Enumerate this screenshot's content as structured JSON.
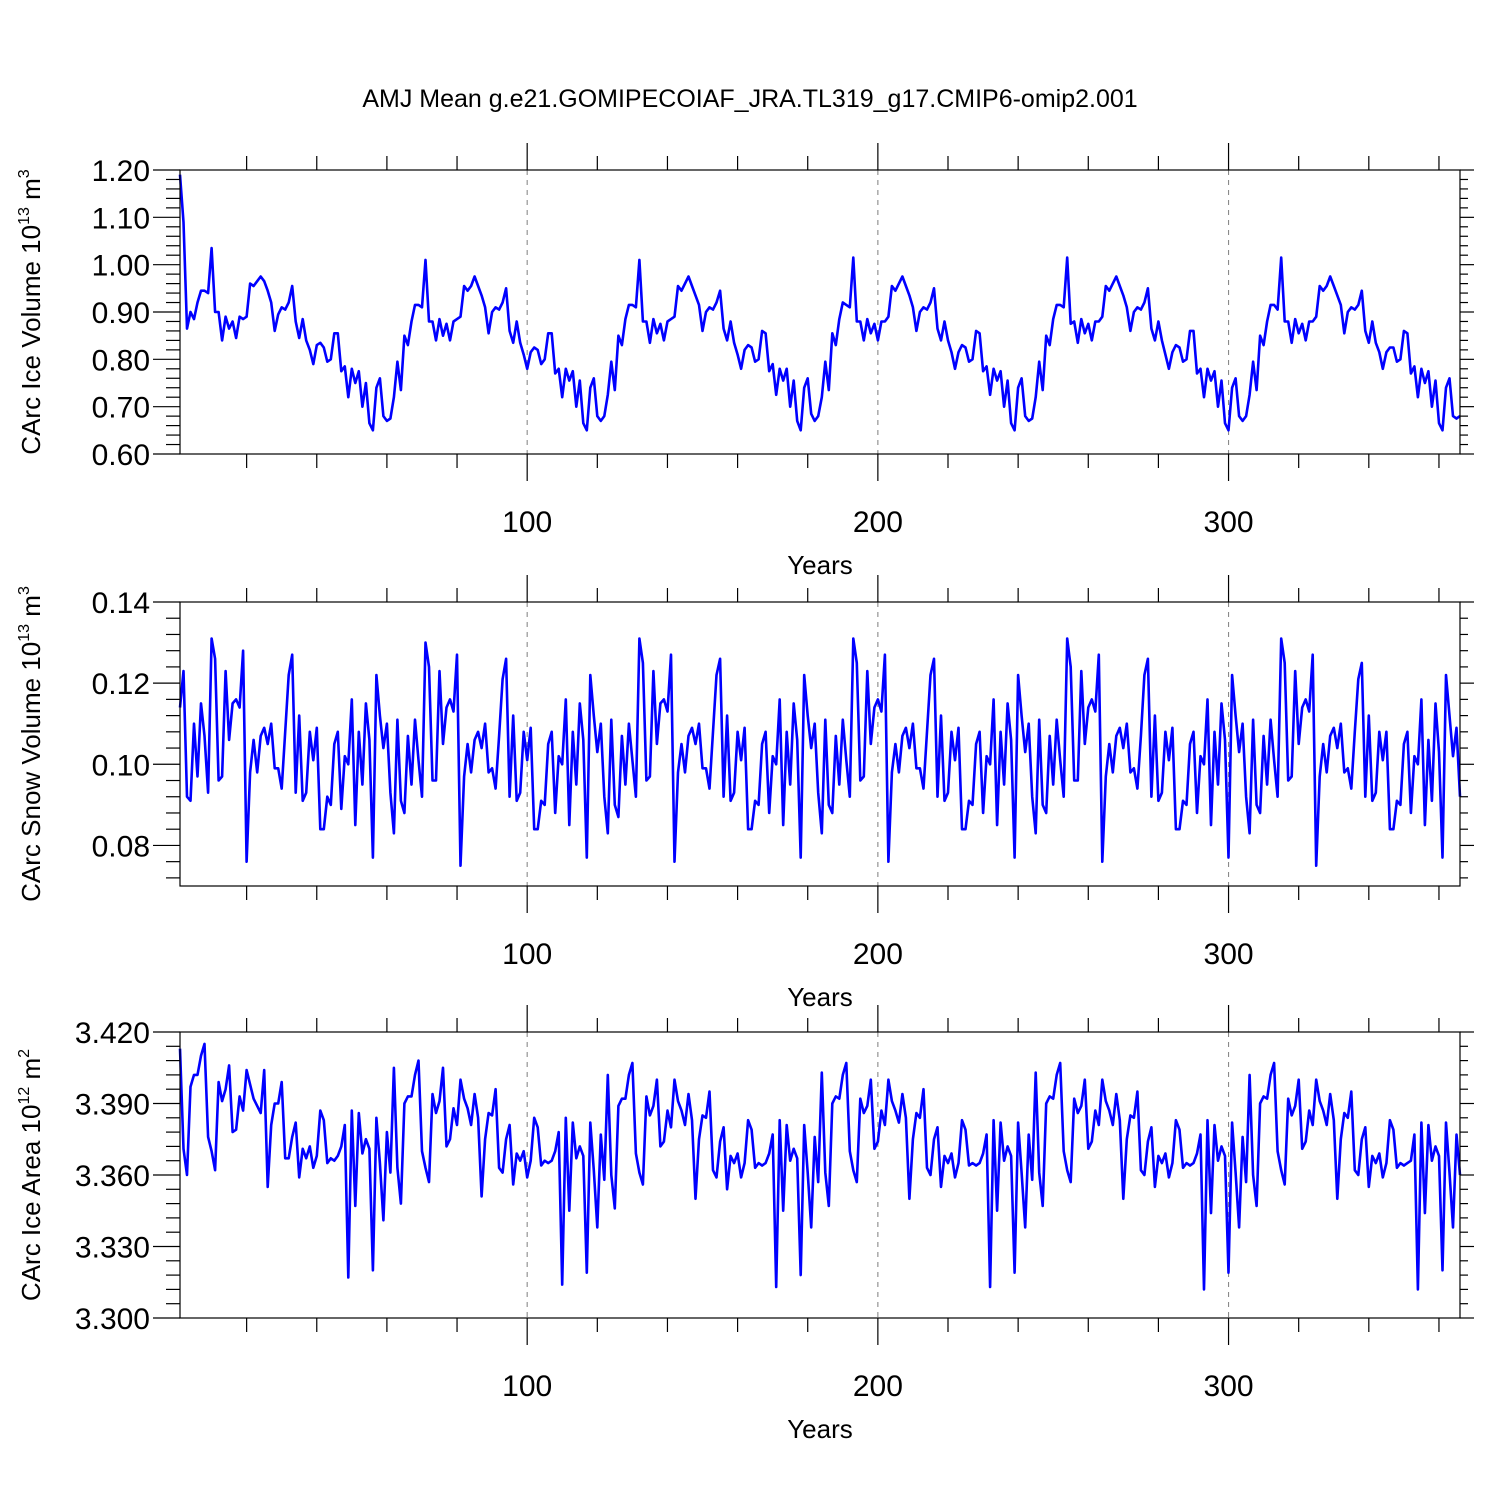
{
  "title": "AMJ Mean g.e21.GOMIPECOIAF_JRA.TL319_g17.CMIP6-omip2.001",
  "chart_data": [
    {
      "type": "line",
      "name": "ice-volume",
      "ylabel": "CArc Ice Volume 10",
      "ylabel_sup": "13",
      "ylabel_unit": "m",
      "ylabel_unit_sup": "3",
      "xlabel": "Years",
      "xlim": [
        1,
        366
      ],
      "ylim": [
        0.6,
        1.2
      ],
      "grid_x": [
        100,
        200,
        300
      ],
      "x_ticks": [
        100,
        200,
        300
      ],
      "x_tick_labels": [
        "100",
        "200",
        "300"
      ],
      "y_ticks": [
        0.6,
        0.7,
        0.8,
        0.9,
        1.0,
        1.1,
        1.2
      ],
      "y_tick_labels": [
        "0.60",
        "0.70",
        "0.80",
        "0.90",
        "1.00",
        "1.10",
        "1.20"
      ],
      "values": [
        1.19,
        1.09,
        0.865,
        0.9,
        0.885,
        0.92,
        0.945,
        0.945,
        0.94,
        1.035,
        0.9,
        0.9,
        0.84,
        0.89,
        0.865,
        0.88,
        0.845,
        0.89,
        0.885,
        0.89,
        0.96,
        0.955,
        0.965,
        0.975,
        0.965,
        0.945,
        0.92,
        0.86,
        0.895,
        0.91,
        0.905,
        0.92,
        0.955,
        0.88,
        0.845,
        0.885,
        0.84,
        0.82,
        0.79,
        0.83,
        0.835,
        0.825,
        0.795,
        0.8,
        0.855,
        0.855,
        0.775,
        0.785,
        0.72,
        0.78,
        0.75,
        0.775,
        0.7,
        0.75,
        0.665,
        0.65,
        0.74,
        0.76,
        0.68,
        0.67,
        0.675,
        0.72,
        0.795,
        0.735,
        0.85,
        0.83,
        0.88,
        0.915,
        0.915,
        0.91,
        1.01,
        0.88,
        0.88,
        0.84,
        0.885,
        0.85,
        0.875,
        0.84,
        0.88,
        0.885,
        0.89,
        0.955,
        0.945,
        0.955,
        0.975,
        0.955,
        0.935,
        0.91,
        0.855,
        0.9,
        0.91,
        0.905,
        0.92,
        0.95,
        0.86,
        0.835,
        0.88,
        0.835,
        0.81,
        0.78,
        0.815,
        0.825,
        0.82,
        0.79,
        0.8,
        0.855,
        0.855,
        0.77,
        0.78,
        0.72,
        0.78,
        0.755,
        0.775,
        0.7,
        0.755,
        0.665,
        0.65,
        0.74,
        0.76,
        0.68,
        0.67,
        0.68,
        0.725,
        0.795,
        0.735,
        0.85,
        0.83,
        0.885,
        0.915,
        0.915,
        0.91,
        1.01,
        0.88,
        0.88,
        0.835,
        0.885,
        0.855,
        0.875,
        0.84,
        0.88,
        0.885,
        0.89,
        0.955,
        0.945,
        0.96,
        0.975,
        0.955,
        0.935,
        0.915,
        0.86,
        0.9,
        0.91,
        0.905,
        0.92,
        0.945,
        0.865,
        0.84,
        0.88,
        0.835,
        0.81,
        0.78,
        0.82,
        0.83,
        0.825,
        0.795,
        0.8,
        0.86,
        0.855,
        0.775,
        0.79,
        0.725,
        0.78,
        0.755,
        0.78,
        0.7,
        0.755,
        0.67,
        0.65,
        0.74,
        0.76,
        0.685,
        0.67,
        0.68,
        0.72,
        0.795,
        0.735,
        0.855,
        0.83,
        0.885,
        0.92,
        0.915,
        0.91,
        1.015,
        0.88,
        0.88,
        0.84,
        0.885,
        0.855,
        0.875,
        0.84,
        0.88,
        0.88,
        0.89,
        0.955,
        0.945,
        0.96,
        0.975,
        0.955,
        0.935,
        0.91,
        0.86,
        0.9,
        0.91,
        0.905,
        0.92,
        0.95,
        0.865,
        0.84,
        0.88,
        0.84,
        0.815,
        0.78,
        0.815,
        0.83,
        0.825,
        0.795,
        0.8,
        0.86,
        0.855,
        0.775,
        0.785,
        0.725,
        0.78,
        0.755,
        0.775,
        0.7,
        0.755,
        0.665,
        0.65,
        0.74,
        0.76,
        0.68,
        0.67,
        0.675,
        0.72,
        0.795,
        0.735,
        0.85,
        0.83,
        0.885,
        0.915,
        0.915,
        0.91,
        1.015,
        0.875,
        0.88,
        0.835,
        0.885,
        0.855,
        0.875,
        0.84,
        0.88,
        0.88,
        0.89,
        0.955,
        0.945,
        0.96,
        0.975,
        0.955,
        0.935,
        0.91,
        0.86,
        0.9,
        0.91,
        0.905,
        0.92,
        0.95,
        0.865,
        0.84,
        0.88,
        0.84,
        0.81,
        0.78,
        0.815,
        0.83,
        0.825,
        0.795,
        0.8,
        0.86,
        0.86,
        0.77,
        0.78,
        0.72,
        0.78,
        0.755,
        0.775,
        0.7,
        0.755,
        0.665,
        0.65,
        0.74,
        0.76,
        0.68,
        0.67,
        0.68,
        0.725,
        0.795,
        0.735,
        0.85,
        0.83,
        0.88,
        0.915,
        0.915,
        0.905,
        1.015,
        0.88,
        0.88,
        0.835,
        0.885,
        0.855,
        0.875,
        0.84,
        0.88,
        0.88,
        0.89,
        0.955,
        0.945,
        0.955,
        0.975,
        0.955,
        0.935,
        0.915,
        0.855,
        0.9,
        0.91,
        0.905,
        0.915,
        0.945,
        0.86,
        0.835,
        0.88,
        0.835,
        0.815,
        0.78,
        0.815,
        0.825,
        0.825,
        0.795,
        0.8,
        0.86,
        0.855,
        0.77,
        0.785,
        0.72,
        0.78,
        0.75,
        0.775,
        0.7,
        0.755,
        0.665,
        0.65,
        0.74,
        0.76,
        0.68,
        0.675,
        0.68
      ]
    },
    {
      "type": "line",
      "name": "snow-volume",
      "ylabel": "CArc Snow Volume 10",
      "ylabel_sup": "13",
      "ylabel_unit": "m",
      "ylabel_unit_sup": "3",
      "xlabel": "Years",
      "xlim": [
        1,
        366
      ],
      "ylim": [
        0.07,
        0.14
      ],
      "grid_x": [
        100,
        200,
        300
      ],
      "x_ticks": [
        100,
        200,
        300
      ],
      "x_tick_labels": [
        "100",
        "200",
        "300"
      ],
      "y_ticks": [
        0.08,
        0.1,
        0.12,
        0.14
      ],
      "y_tick_labels": [
        "0.08",
        "0.10",
        "0.12",
        "0.14"
      ],
      "values": [
        0.114,
        0.123,
        0.092,
        0.091,
        0.11,
        0.097,
        0.115,
        0.107,
        0.093,
        0.131,
        0.126,
        0.096,
        0.097,
        0.123,
        0.106,
        0.115,
        0.116,
        0.114,
        0.128,
        0.076,
        0.098,
        0.106,
        0.098,
        0.107,
        0.109,
        0.105,
        0.11,
        0.099,
        0.099,
        0.094,
        0.108,
        0.122,
        0.127,
        0.093,
        0.112,
        0.091,
        0.093,
        0.108,
        0.101,
        0.109,
        0.084,
        0.084,
        0.092,
        0.09,
        0.105,
        0.108,
        0.089,
        0.102,
        0.1,
        0.116,
        0.085,
        0.108,
        0.095,
        0.115,
        0.106,
        0.077,
        0.122,
        0.112,
        0.104,
        0.11,
        0.093,
        0.083,
        0.111,
        0.091,
        0.088,
        0.107,
        0.095,
        0.111,
        0.101,
        0.092,
        0.13,
        0.124,
        0.096,
        0.096,
        0.123,
        0.105,
        0.114,
        0.116,
        0.113,
        0.127,
        0.075,
        0.097,
        0.105,
        0.098,
        0.106,
        0.108,
        0.104,
        0.11,
        0.098,
        0.099,
        0.094,
        0.107,
        0.121,
        0.126,
        0.092,
        0.112,
        0.091,
        0.093,
        0.108,
        0.101,
        0.109,
        0.084,
        0.084,
        0.091,
        0.09,
        0.105,
        0.108,
        0.088,
        0.102,
        0.1,
        0.116,
        0.085,
        0.108,
        0.095,
        0.115,
        0.106,
        0.077,
        0.122,
        0.112,
        0.103,
        0.11,
        0.092,
        0.083,
        0.111,
        0.09,
        0.087,
        0.107,
        0.095,
        0.11,
        0.101,
        0.092,
        0.131,
        0.125,
        0.096,
        0.097,
        0.123,
        0.105,
        0.115,
        0.116,
        0.113,
        0.127,
        0.076,
        0.098,
        0.105,
        0.098,
        0.107,
        0.109,
        0.105,
        0.11,
        0.099,
        0.099,
        0.094,
        0.108,
        0.122,
        0.126,
        0.092,
        0.112,
        0.091,
        0.093,
        0.108,
        0.101,
        0.109,
        0.084,
        0.084,
        0.091,
        0.09,
        0.105,
        0.108,
        0.088,
        0.102,
        0.1,
        0.116,
        0.085,
        0.108,
        0.095,
        0.115,
        0.106,
        0.077,
        0.122,
        0.112,
        0.104,
        0.11,
        0.093,
        0.083,
        0.111,
        0.09,
        0.088,
        0.107,
        0.095,
        0.111,
        0.101,
        0.092,
        0.131,
        0.125,
        0.096,
        0.097,
        0.123,
        0.105,
        0.114,
        0.116,
        0.113,
        0.127,
        0.076,
        0.098,
        0.105,
        0.098,
        0.107,
        0.109,
        0.104,
        0.11,
        0.099,
        0.099,
        0.094,
        0.108,
        0.122,
        0.126,
        0.092,
        0.112,
        0.091,
        0.093,
        0.108,
        0.101,
        0.109,
        0.084,
        0.084,
        0.091,
        0.09,
        0.105,
        0.108,
        0.088,
        0.102,
        0.1,
        0.116,
        0.085,
        0.108,
        0.095,
        0.115,
        0.106,
        0.077,
        0.122,
        0.112,
        0.103,
        0.11,
        0.092,
        0.083,
        0.111,
        0.09,
        0.088,
        0.107,
        0.095,
        0.111,
        0.101,
        0.092,
        0.131,
        0.124,
        0.096,
        0.096,
        0.123,
        0.105,
        0.114,
        0.116,
        0.113,
        0.127,
        0.076,
        0.097,
        0.105,
        0.098,
        0.107,
        0.109,
        0.104,
        0.11,
        0.098,
        0.099,
        0.094,
        0.107,
        0.122,
        0.126,
        0.092,
        0.112,
        0.091,
        0.093,
        0.108,
        0.101,
        0.109,
        0.084,
        0.084,
        0.091,
        0.09,
        0.105,
        0.108,
        0.088,
        0.102,
        0.1,
        0.116,
        0.085,
        0.108,
        0.095,
        0.115,
        0.106,
        0.077,
        0.122,
        0.112,
        0.103,
        0.11,
        0.092,
        0.083,
        0.111,
        0.09,
        0.088,
        0.107,
        0.095,
        0.111,
        0.101,
        0.092,
        0.131,
        0.125,
        0.096,
        0.097,
        0.123,
        0.105,
        0.114,
        0.116,
        0.113,
        0.127,
        0.075,
        0.097,
        0.105,
        0.098,
        0.107,
        0.109,
        0.104,
        0.11,
        0.098,
        0.099,
        0.094,
        0.108,
        0.121,
        0.125,
        0.092,
        0.112,
        0.091,
        0.093,
        0.108,
        0.101,
        0.108,
        0.084,
        0.084,
        0.091,
        0.09,
        0.105,
        0.108,
        0.088,
        0.102,
        0.1,
        0.116,
        0.085,
        0.106,
        0.091,
        0.115,
        0.103,
        0.077,
        0.122,
        0.112,
        0.102,
        0.109,
        0.092
      ]
    },
    {
      "type": "line",
      "name": "ice-area",
      "ylabel": "CArc Ice Area 10",
      "ylabel_sup": "12",
      "ylabel_unit": "m",
      "ylabel_unit_sup": "2",
      "xlabel": "Years",
      "xlim": [
        1,
        366
      ],
      "ylim": [
        3.3,
        3.42
      ],
      "grid_x": [
        100,
        200,
        300
      ],
      "x_ticks": [
        100,
        200,
        300
      ],
      "x_tick_labels": [
        "100",
        "200",
        "300"
      ],
      "y_ticks": [
        3.3,
        3.33,
        3.36,
        3.39,
        3.42
      ],
      "y_tick_labels": [
        "3.300",
        "3.330",
        "3.360",
        "3.390",
        "3.420"
      ],
      "values": [
        3.413,
        3.371,
        3.36,
        3.397,
        3.402,
        3.402,
        3.41,
        3.415,
        3.376,
        3.37,
        3.362,
        3.399,
        3.391,
        3.396,
        3.406,
        3.378,
        3.379,
        3.393,
        3.387,
        3.404,
        3.398,
        3.392,
        3.389,
        3.386,
        3.404,
        3.355,
        3.381,
        3.39,
        3.39,
        3.399,
        3.367,
        3.367,
        3.376,
        3.382,
        3.359,
        3.371,
        3.367,
        3.372,
        3.363,
        3.368,
        3.387,
        3.383,
        3.365,
        3.367,
        3.366,
        3.368,
        3.372,
        3.381,
        3.317,
        3.387,
        3.347,
        3.386,
        3.369,
        3.375,
        3.371,
        3.32,
        3.384,
        3.365,
        3.341,
        3.378,
        3.361,
        3.405,
        3.363,
        3.348,
        3.39,
        3.393,
        3.393,
        3.402,
        3.408,
        3.37,
        3.363,
        3.357,
        3.394,
        3.386,
        3.391,
        3.405,
        3.372,
        3.375,
        3.388,
        3.381,
        3.4,
        3.392,
        3.388,
        3.381,
        3.394,
        3.384,
        3.351,
        3.375,
        3.386,
        3.385,
        3.396,
        3.363,
        3.361,
        3.375,
        3.381,
        3.356,
        3.369,
        3.366,
        3.37,
        3.359,
        3.366,
        3.384,
        3.38,
        3.364,
        3.366,
        3.365,
        3.366,
        3.37,
        3.378,
        3.314,
        3.384,
        3.345,
        3.382,
        3.367,
        3.372,
        3.368,
        3.319,
        3.382,
        3.362,
        3.338,
        3.377,
        3.358,
        3.402,
        3.36,
        3.346,
        3.389,
        3.392,
        3.392,
        3.402,
        3.407,
        3.369,
        3.361,
        3.356,
        3.393,
        3.385,
        3.389,
        3.4,
        3.372,
        3.374,
        3.387,
        3.38,
        3.4,
        3.391,
        3.387,
        3.381,
        3.394,
        3.383,
        3.35,
        3.375,
        3.385,
        3.384,
        3.395,
        3.362,
        3.359,
        3.374,
        3.38,
        3.354,
        3.368,
        3.365,
        3.369,
        3.359,
        3.365,
        3.383,
        3.379,
        3.363,
        3.365,
        3.364,
        3.365,
        3.369,
        3.377,
        3.313,
        3.383,
        3.345,
        3.381,
        3.366,
        3.371,
        3.367,
        3.318,
        3.381,
        3.361,
        3.338,
        3.376,
        3.357,
        3.403,
        3.361,
        3.347,
        3.39,
        3.393,
        3.392,
        3.402,
        3.407,
        3.37,
        3.362,
        3.357,
        3.392,
        3.386,
        3.389,
        3.4,
        3.371,
        3.374,
        3.387,
        3.381,
        3.4,
        3.391,
        3.387,
        3.382,
        3.394,
        3.384,
        3.35,
        3.375,
        3.386,
        3.384,
        3.396,
        3.363,
        3.36,
        3.375,
        3.38,
        3.355,
        3.368,
        3.365,
        3.369,
        3.359,
        3.365,
        3.383,
        3.379,
        3.364,
        3.365,
        3.364,
        3.365,
        3.369,
        3.377,
        3.313,
        3.383,
        3.345,
        3.382,
        3.366,
        3.372,
        3.368,
        3.319,
        3.382,
        3.361,
        3.338,
        3.377,
        3.358,
        3.403,
        3.361,
        3.347,
        3.39,
        3.393,
        3.392,
        3.402,
        3.407,
        3.37,
        3.362,
        3.357,
        3.392,
        3.386,
        3.389,
        3.4,
        3.371,
        3.374,
        3.387,
        3.381,
        3.4,
        3.391,
        3.387,
        3.381,
        3.394,
        3.383,
        3.35,
        3.375,
        3.385,
        3.384,
        3.395,
        3.362,
        3.36,
        3.374,
        3.38,
        3.355,
        3.368,
        3.365,
        3.369,
        3.359,
        3.365,
        3.383,
        3.379,
        3.363,
        3.365,
        3.364,
        3.365,
        3.369,
        3.377,
        3.312,
        3.383,
        3.344,
        3.381,
        3.366,
        3.372,
        3.368,
        3.319,
        3.382,
        3.361,
        3.338,
        3.376,
        3.357,
        3.402,
        3.36,
        3.347,
        3.39,
        3.393,
        3.392,
        3.402,
        3.407,
        3.37,
        3.362,
        3.356,
        3.392,
        3.385,
        3.389,
        3.4,
        3.371,
        3.374,
        3.387,
        3.381,
        3.4,
        3.391,
        3.387,
        3.381,
        3.394,
        3.383,
        3.35,
        3.375,
        3.386,
        3.384,
        3.395,
        3.362,
        3.36,
        3.375,
        3.38,
        3.355,
        3.368,
        3.365,
        3.369,
        3.359,
        3.365,
        3.383,
        3.379,
        3.363,
        3.365,
        3.364,
        3.365,
        3.366,
        3.377,
        3.312,
        3.382,
        3.344,
        3.381,
        3.366,
        3.372,
        3.368,
        3.32,
        3.382,
        3.361,
        3.338,
        3.377,
        3.36
      ]
    }
  ]
}
